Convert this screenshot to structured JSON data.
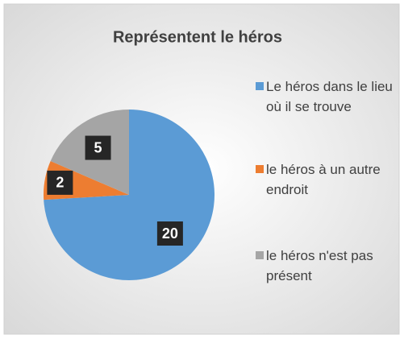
{
  "chart_data": {
    "type": "pie",
    "title": "Représentent le héros",
    "categories": [
      "Le héros dans le lieu où il se trouve",
      "le héros à un autre endroit",
      "le héros n'est pas présent"
    ],
    "values": [
      20,
      2,
      5
    ],
    "colors": [
      "#5b9bd5",
      "#ed7d31",
      "#a5a5a5"
    ],
    "legend": "right"
  }
}
